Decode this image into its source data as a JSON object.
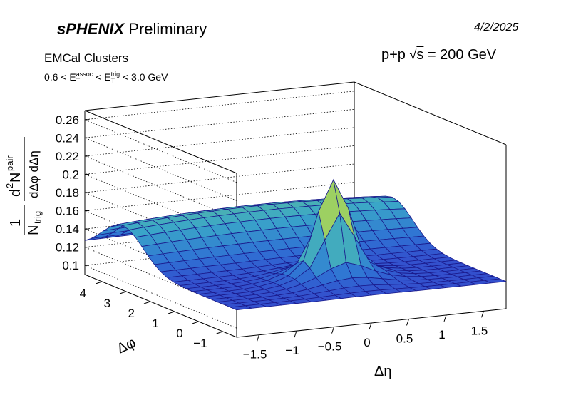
{
  "header": {
    "experiment": "sPHENIX",
    "status": "Preliminary",
    "date": "4/2/2025",
    "sample": "EMCal Clusters",
    "collision": "p+p",
    "energy": " = 200 GeV",
    "cut": {
      "lo": "0.6 < E",
      "assoc_sup": "assoc",
      "assoc_sub": "T",
      "mid": " < E",
      "trig_sup": "trig",
      "trig_sub": "T",
      "hi": " < 3.0 GeV"
    }
  },
  "chart_data": {
    "type": "surface",
    "title": "",
    "xlabel": "Δη",
    "ylabel": "Δφ",
    "zlabel_parts": {
      "one": "1",
      "n": "N",
      "n_sub": "trig",
      "num_pre": "d",
      "num_sup": "2",
      "num_mid": "N",
      "num_sup2": "pair",
      "den": "dΔφ dΔη"
    },
    "xlim": [
      -1.8,
      1.8
    ],
    "ylim": [
      -1.5708,
      4.7124
    ],
    "zlim": [
      0.09,
      0.27
    ],
    "x_ticks": [
      "−1.5",
      "−1",
      "−0.5",
      "0",
      "0.5",
      "1",
      "1.5"
    ],
    "x_tick_values": [
      -1.5,
      -1,
      -0.5,
      0,
      0.5,
      1,
      1.5
    ],
    "y_ticks": [
      "−1",
      "0",
      "1",
      "2",
      "3",
      "4"
    ],
    "y_tick_values": [
      -1,
      0,
      1,
      2,
      3,
      4
    ],
    "z_ticks": [
      "0.1",
      "0.12",
      "0.14",
      "0.16",
      "0.18",
      "0.2",
      "0.22",
      "0.24",
      "0.26"
    ],
    "z_tick_values": [
      0.1,
      0.12,
      0.14,
      0.16,
      0.18,
      0.2,
      0.22,
      0.24,
      0.26
    ],
    "x_bins": 18,
    "y_bins": 24,
    "model": {
      "baseline": 0.12,
      "near_side_peak_height": 0.1,
      "near_side_sigma_eta": 0.17,
      "near_side_sigma_phi": 0.22,
      "near_side_wide_height": 0.03,
      "near_side_wide_sigma_eta": 0.4,
      "near_side_wide_sigma_phi": 0.55,
      "away_side_ridge_height": 0.047,
      "away_side_sigma_phi": 0.85,
      "away_side_eta_falloff": 0.12,
      "peak_clipped_at": 0.23
    },
    "colormap": [
      "#3636c8",
      "#2f72d4",
      "#3aa6c8",
      "#67c48f",
      "#b9d64a",
      "#f4e22e"
    ]
  }
}
